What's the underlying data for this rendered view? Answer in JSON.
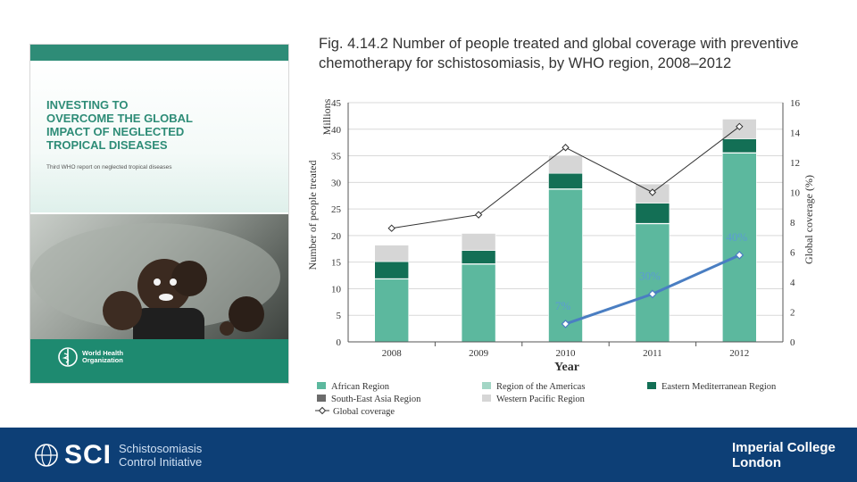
{
  "cover": {
    "title_lines": [
      "INVESTING TO",
      "OVERCOME THE GLOBAL",
      "IMPACT OF NEGLECTED",
      "TROPICAL DISEASES"
    ],
    "subtitle": "Third WHO report on neglected tropical diseases",
    "publisher_lines": [
      "World Health",
      "Organization"
    ]
  },
  "caption": "Fig. 4.14.2  Number of people treated and global coverage with preventive chemotherapy for schistosomiasis, by WHO region, 2008–2012",
  "chart_data": {
    "type": "bar",
    "stacked": true,
    "categories": [
      "2008",
      "2009",
      "2010",
      "2011",
      "2012"
    ],
    "xlabel": "Year",
    "ylabel": "Number of people treated",
    "ylabel_units": "Millions",
    "y2label": "Global coverage (%)",
    "ylim": [
      0,
      45
    ],
    "y_ticks": [
      0,
      5,
      10,
      15,
      20,
      25,
      30,
      35,
      40,
      45
    ],
    "y2lim": [
      0,
      16
    ],
    "y2_ticks": [
      0,
      2,
      4,
      6,
      8,
      10,
      12,
      14,
      16
    ],
    "grid": true,
    "legend_position": "bottom",
    "series": [
      {
        "name": "African Region",
        "color": "#5cb89e",
        "values": [
          11.8,
          14.6,
          28.7,
          22.2,
          35.5
        ]
      },
      {
        "name": "Region of the Americas",
        "color": "#a3d6c5",
        "values": [
          0.1,
          0.1,
          0.1,
          0.1,
          0.1
        ]
      },
      {
        "name": "Eastern Mediterranean Region",
        "color": "#136f55",
        "values": [
          3.2,
          2.5,
          2.9,
          3.8,
          2.6
        ]
      },
      {
        "name": "South-East Asia Region",
        "color": "#6b6b6b",
        "values": [
          0,
          0,
          0,
          0,
          0
        ]
      },
      {
        "name": "Western Pacific Region",
        "color": "#d6d6d6",
        "values": [
          3.1,
          3.2,
          3.4,
          3.6,
          3.7
        ]
      }
    ],
    "line_series": {
      "name": "Global coverage",
      "axis": "right",
      "color": "#333333",
      "values": [
        7.6,
        8.5,
        13.0,
        10.0,
        14.4
      ]
    },
    "annotation": {
      "color": "#4a7ec2",
      "label_color": "#5b9bd5",
      "x": [
        "2010",
        "2011",
        "2012"
      ],
      "values": [
        1.2,
        3.2,
        5.8
      ],
      "labels": [
        "7%",
        "30%",
        "40%"
      ]
    }
  },
  "footer": {
    "logo_text": "SCI",
    "org_lines": [
      "Schistosomiasis",
      "Control Initiative"
    ],
    "partner_lines": [
      "Imperial College",
      "London"
    ]
  }
}
